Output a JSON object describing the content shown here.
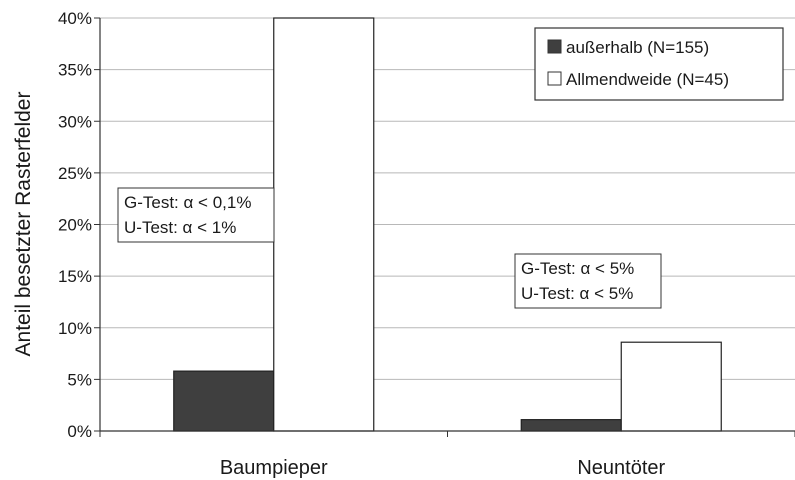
{
  "chart_data": {
    "type": "bar",
    "categories": [
      "Baumpieper",
      "Neuntöter"
    ],
    "series": [
      {
        "name": "außerhalb (N=155)",
        "values": [
          5.8,
          1.1
        ],
        "color": "#3f3f3f"
      },
      {
        "name": "Allmendweide (N=45)",
        "values": [
          40.0,
          8.6
        ],
        "color": "#ffffff"
      }
    ],
    "ylabel": "Anteil besetzter Rasterfelder",
    "ylim": [
      0,
      40
    ],
    "yticks": [
      "0%",
      "5%",
      "10%",
      "15%",
      "20%",
      "25%",
      "30%",
      "35%",
      "40%"
    ],
    "grid": true,
    "legend_position": "top-right",
    "annotations": [
      {
        "lines": [
          "G-Test: α < 0,1%",
          "U-Test: α < 1%"
        ]
      },
      {
        "lines": [
          "G-Test: α < 5%",
          "U-Test: α < 5%"
        ]
      }
    ]
  }
}
